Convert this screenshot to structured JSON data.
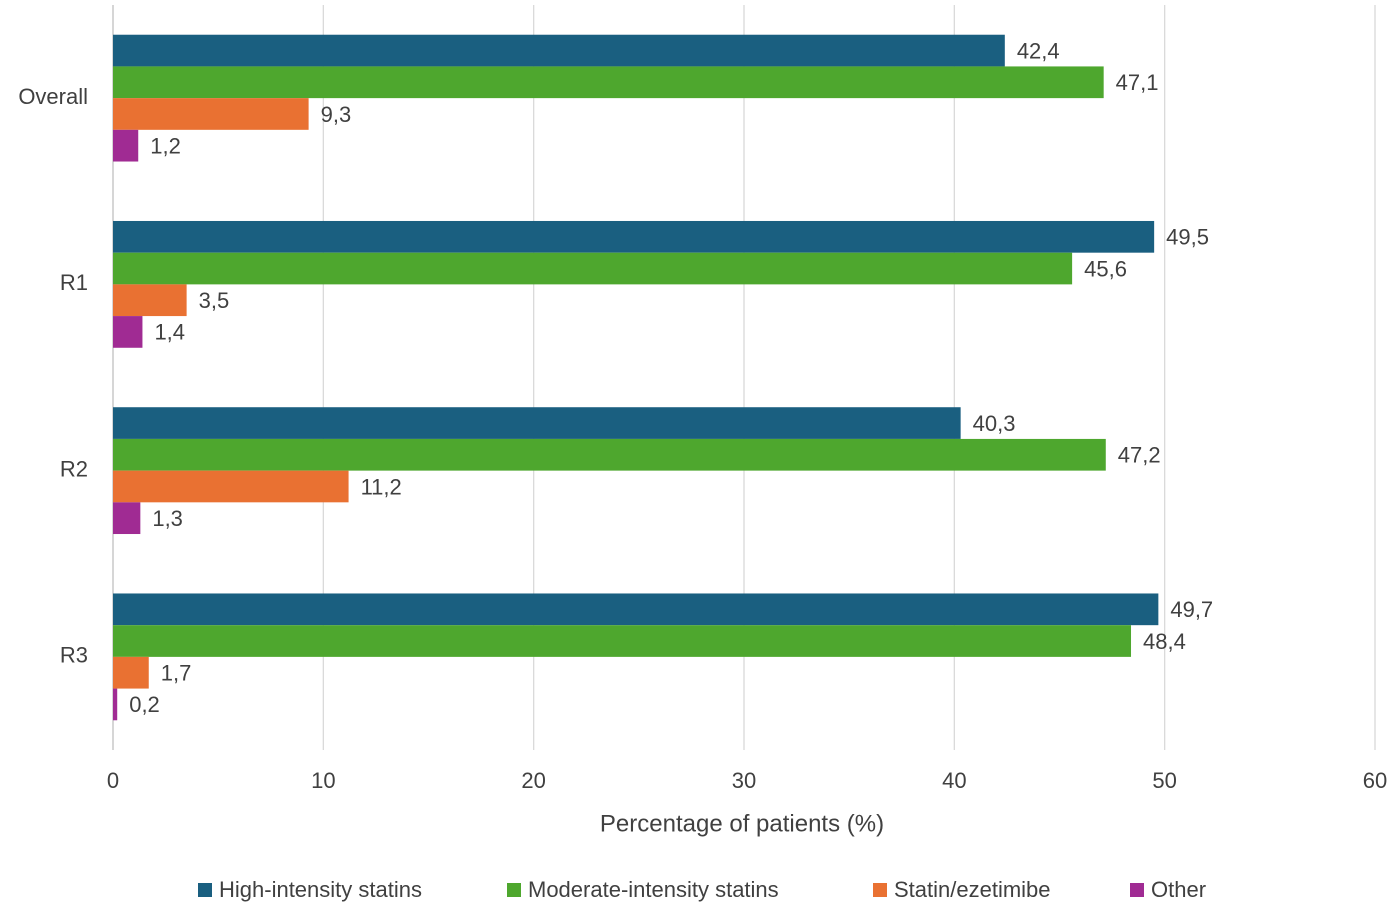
{
  "chart_data": {
    "type": "bar",
    "orientation": "horizontal",
    "categories": [
      "Overall",
      "R1",
      "R2",
      "R3"
    ],
    "series": [
      {
        "name": "High-intensity statins",
        "color": "#1a5f80",
        "values": [
          42.4,
          49.5,
          40.3,
          49.7
        ],
        "value_labels": [
          "42,4",
          "49,5",
          "40,3",
          "49,7"
        ]
      },
      {
        "name": "Moderate-intensity statins",
        "color": "#4ea72e",
        "values": [
          47.1,
          45.6,
          47.2,
          48.4
        ],
        "value_labels": [
          "47,1",
          "45,6",
          "47,2",
          "48,4"
        ]
      },
      {
        "name": "Statin/ezetimibe",
        "color": "#e97132",
        "values": [
          9.3,
          3.5,
          11.2,
          1.7
        ],
        "value_labels": [
          "9,3",
          "3,5",
          "11,2",
          "1,7"
        ]
      },
      {
        "name": "Other",
        "color": "#a02b93",
        "values": [
          1.2,
          1.4,
          1.3,
          0.2
        ],
        "value_labels": [
          "1,2",
          "1,4",
          "1,3",
          "0,2"
        ]
      }
    ],
    "xlabel": "Percentage of patients (%)",
    "xlim": [
      0,
      60
    ],
    "xticks": [
      0,
      10,
      20,
      30,
      40,
      50,
      60
    ],
    "grid": true,
    "legend": "bottom"
  }
}
